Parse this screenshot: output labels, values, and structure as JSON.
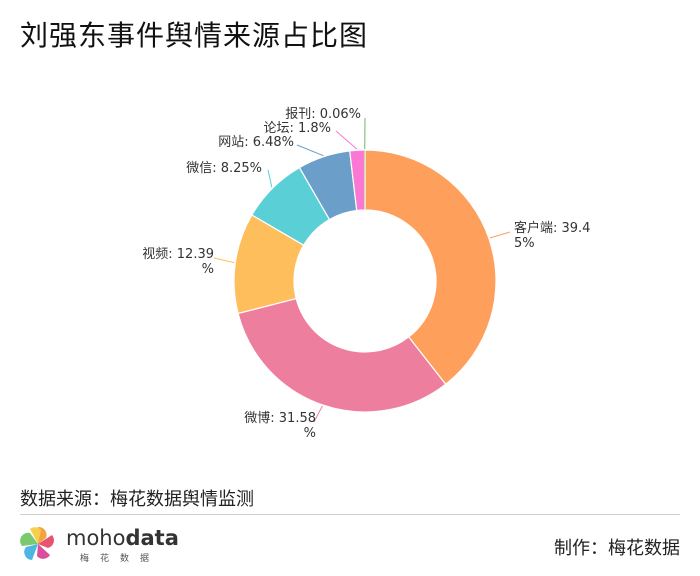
{
  "title": "刘强东事件舆情来源占比图",
  "chart_data": {
    "type": "pie",
    "variant": "donut",
    "categories": [
      "客户端",
      "微博",
      "视频",
      "微信",
      "网站",
      "论坛",
      "报刊"
    ],
    "values": [
      39.45,
      31.58,
      12.39,
      8.25,
      6.48,
      1.8,
      0.06
    ],
    "labels": [
      [
        "客户端: 39.4",
        "5%"
      ],
      [
        "微博: 31.58",
        "%"
      ],
      [
        "视频: 12.39",
        "%"
      ],
      [
        "微信: 8.25%"
      ],
      [
        "网站: 6.48%"
      ],
      [
        "论坛: 1.8%"
      ],
      [
        "报刊: 0.06%"
      ]
    ],
    "colors": [
      "#FF9F5C",
      "#EE7E9E",
      "#FFBE5C",
      "#5ACFD6",
      "#6B9EC9",
      "#FA77D2",
      "#72B46A"
    ],
    "unit": "%"
  },
  "source": "数据来源：梅花数据舆情监测",
  "brand": {
    "prefix": "moho",
    "suffix": "data",
    "sub": "梅花数据"
  },
  "maker": "制作：梅花数据"
}
